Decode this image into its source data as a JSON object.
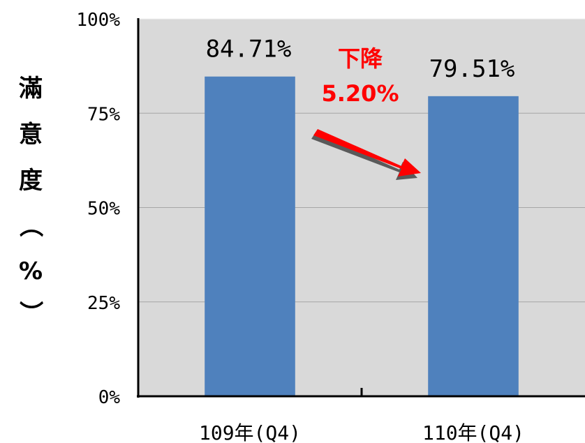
{
  "chart_data": {
    "type": "bar",
    "categories": [
      "109年(Q4)",
      "110年(Q4)"
    ],
    "values": [
      84.71,
      79.51
    ],
    "data_labels": [
      "84.71%",
      "79.51%"
    ],
    "ylabel_chars": [
      "滿",
      "意",
      "度",
      "（",
      "%",
      "）"
    ],
    "ylim": [
      0,
      100
    ],
    "yticks": [
      0,
      25,
      50,
      75,
      100
    ],
    "ytick_labels": [
      "0%",
      "25%",
      "50%",
      "75%",
      "100%"
    ],
    "grid": true,
    "annotation": {
      "line1": "下降",
      "line2": "5.20%",
      "color": "#ff0000"
    },
    "colors": {
      "bar": "#4f81bd",
      "plot_bg": "#d9d9d9",
      "grid": "#a6a6a6",
      "arrow": "#ff0000"
    }
  }
}
